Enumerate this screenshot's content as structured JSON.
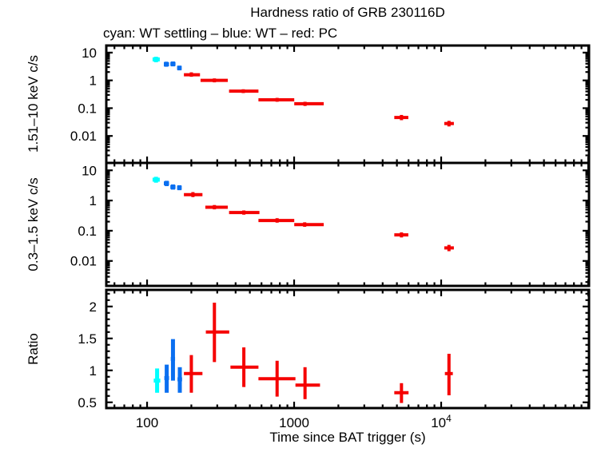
{
  "title": "Hardness ratio of GRB 230116D",
  "subtitle": "cyan: WT settling – blue: WT – red: PC",
  "x_axis": {
    "label": "Time since BAT trigger (s)",
    "scale": "log",
    "xlim": [
      52.8,
      101250
    ],
    "ticks": [
      {
        "v": 100,
        "label": "100"
      },
      {
        "v": 1000,
        "label": "1000"
      },
      {
        "v": 10000,
        "label": "10^4"
      },
      {
        "v": 100000,
        "label": ""
      }
    ]
  },
  "colors": {
    "wt_settling": "#00ffff",
    "wt": "#0a6ff0",
    "pc": "#f50000",
    "axis": "#000000"
  },
  "chart_data": [
    {
      "type": "scatter",
      "ylabel": "1.51–10 keV c/s",
      "yscale": "log",
      "ylim": [
        0.00107,
        18.0
      ],
      "yticks": [
        {
          "v": 10,
          "label": "10"
        },
        {
          "v": 1,
          "label": "1"
        },
        {
          "v": 0.1,
          "label": "0.1"
        },
        {
          "v": 0.01,
          "label": "0.01"
        }
      ],
      "series": [
        {
          "name": "WT settling",
          "mode": "wt_settling",
          "points": [
            {
              "t": 115,
              "t_lo": 109,
              "t_hi": 122,
              "y": 5.7,
              "y_lo": 4.5,
              "y_hi": 7.1
            }
          ]
        },
        {
          "name": "WT",
          "mode": "wt",
          "points": [
            {
              "t": 135,
              "t_lo": 130,
              "t_hi": 141,
              "y": 3.8,
              "y_lo": 3.1,
              "y_hi": 4.7
            },
            {
              "t": 150,
              "t_lo": 144,
              "t_hi": 156,
              "y": 3.9,
              "y_lo": 3.2,
              "y_hi": 4.8
            },
            {
              "t": 166,
              "t_lo": 160,
              "t_hi": 172,
              "y": 2.8,
              "y_lo": 2.3,
              "y_hi": 3.4
            }
          ]
        },
        {
          "name": "PC",
          "mode": "pc",
          "points": [
            {
              "t": 200,
              "t_lo": 178,
              "t_hi": 229,
              "y": 1.6,
              "y_lo": 1.35,
              "y_hi": 1.95
            },
            {
              "t": 287,
              "t_lo": 231,
              "t_hi": 354,
              "y": 1.0,
              "y_lo": 0.85,
              "y_hi": 1.18
            },
            {
              "t": 451,
              "t_lo": 361,
              "t_hi": 572,
              "y": 0.41,
              "y_lo": 0.35,
              "y_hi": 0.48
            },
            {
              "t": 766,
              "t_lo": 572,
              "t_hi": 1002,
              "y": 0.2,
              "y_lo": 0.17,
              "y_hi": 0.235
            },
            {
              "t": 1186,
              "t_lo": 1002,
              "t_hi": 1590,
              "y": 0.145,
              "y_lo": 0.12,
              "y_hi": 0.17
            },
            {
              "t": 5370,
              "t_lo": 4800,
              "t_hi": 5980,
              "y": 0.046,
              "y_lo": 0.037,
              "y_hi": 0.057
            },
            {
              "t": 11300,
              "t_lo": 10500,
              "t_hi": 12200,
              "y": 0.028,
              "y_lo": 0.022,
              "y_hi": 0.035
            }
          ]
        }
      ]
    },
    {
      "type": "scatter",
      "ylabel": "0.3–1.5 keV c/s",
      "yscale": "log",
      "ylim": [
        0.00149,
        17.6
      ],
      "yticks": [
        {
          "v": 10,
          "label": "10"
        },
        {
          "v": 1,
          "label": "1"
        },
        {
          "v": 0.1,
          "label": "0.1"
        },
        {
          "v": 0.01,
          "label": "0.01"
        }
      ],
      "series": [
        {
          "name": "WT settling",
          "mode": "wt_settling",
          "points": [
            {
              "t": 115,
              "t_lo": 109,
              "t_hi": 122,
              "y": 4.9,
              "y_lo": 3.9,
              "y_hi": 6.1
            }
          ]
        },
        {
          "name": "WT",
          "mode": "wt",
          "points": [
            {
              "t": 136,
              "t_lo": 130,
              "t_hi": 141,
              "y": 3.7,
              "y_lo": 3.0,
              "y_hi": 4.5
            },
            {
              "t": 150,
              "t_lo": 144,
              "t_hi": 156,
              "y": 2.8,
              "y_lo": 2.3,
              "y_hi": 3.4
            },
            {
              "t": 166,
              "t_lo": 160,
              "t_hi": 172,
              "y": 2.65,
              "y_lo": 2.2,
              "y_hi": 3.2
            }
          ]
        },
        {
          "name": "PC",
          "mode": "pc",
          "points": [
            {
              "t": 205,
              "t_lo": 178,
              "t_hi": 238,
              "y": 1.57,
              "y_lo": 1.3,
              "y_hi": 1.9
            },
            {
              "t": 287,
              "t_lo": 249,
              "t_hi": 354,
              "y": 0.6,
              "y_lo": 0.51,
              "y_hi": 0.71
            },
            {
              "t": 455,
              "t_lo": 361,
              "t_hi": 581,
              "y": 0.4,
              "y_lo": 0.34,
              "y_hi": 0.47
            },
            {
              "t": 766,
              "t_lo": 572,
              "t_hi": 1002,
              "y": 0.218,
              "y_lo": 0.185,
              "y_hi": 0.26
            },
            {
              "t": 1180,
              "t_lo": 1002,
              "t_hi": 1590,
              "y": 0.16,
              "y_lo": 0.135,
              "y_hi": 0.19
            },
            {
              "t": 5370,
              "t_lo": 4800,
              "t_hi": 5980,
              "y": 0.073,
              "y_lo": 0.06,
              "y_hi": 0.088
            },
            {
              "t": 11300,
              "t_lo": 10500,
              "t_hi": 12200,
              "y": 0.027,
              "y_lo": 0.021,
              "y_hi": 0.034
            }
          ]
        }
      ]
    },
    {
      "type": "scatter",
      "ylabel": "Ratio",
      "yscale": "linear",
      "ylim": [
        0.41,
        2.26
      ],
      "yticks": [
        {
          "v": 2,
          "label": "2"
        },
        {
          "v": 1.5,
          "label": "1.5"
        },
        {
          "v": 1,
          "label": "1"
        },
        {
          "v": 0.5,
          "label": "0.5"
        }
      ],
      "minor_step": 0.1,
      "series": [
        {
          "name": "WT settling",
          "mode": "wt_settling",
          "points": [
            {
              "t": 117,
              "t_lo": 111,
              "t_hi": 123,
              "y": 0.84,
              "y_lo": 0.65,
              "y_hi": 1.03
            }
          ]
        },
        {
          "name": "WT",
          "mode": "wt",
          "points": [
            {
              "t": 136,
              "t_lo": 131,
              "t_hi": 141,
              "y": 0.88,
              "y_lo": 0.65,
              "y_hi": 1.09
            },
            {
              "t": 150,
              "t_lo": 145,
              "t_hi": 155,
              "y": 1.18,
              "y_lo": 0.84,
              "y_hi": 1.49
            },
            {
              "t": 167,
              "t_lo": 161,
              "t_hi": 173,
              "y": 0.86,
              "y_lo": 0.65,
              "y_hi": 1.05
            }
          ]
        },
        {
          "name": "PC",
          "mode": "pc",
          "points": [
            {
              "t": 200,
              "t_lo": 178,
              "t_hi": 238,
              "y": 0.95,
              "y_lo": 0.65,
              "y_hi": 1.24
            },
            {
              "t": 287,
              "t_lo": 251,
              "t_hi": 362,
              "y": 1.6,
              "y_lo": 1.13,
              "y_hi": 2.06
            },
            {
              "t": 455,
              "t_lo": 369,
              "t_hi": 572,
              "y": 1.05,
              "y_lo": 0.74,
              "y_hi": 1.36
            },
            {
              "t": 766,
              "t_lo": 572,
              "t_hi": 1021,
              "y": 0.87,
              "y_lo": 0.59,
              "y_hi": 1.15
            },
            {
              "t": 1186,
              "t_lo": 1021,
              "t_hi": 1500,
              "y": 0.77,
              "y_lo": 0.55,
              "y_hi": 1.05
            },
            {
              "t": 5370,
              "t_lo": 4800,
              "t_hi": 6000,
              "y": 0.65,
              "y_lo": 0.49,
              "y_hi": 0.8
            },
            {
              "t": 11300,
              "t_lo": 10600,
              "t_hi": 12000,
              "y": 0.95,
              "y_lo": 0.61,
              "y_hi": 1.26
            }
          ]
        }
      ]
    }
  ]
}
